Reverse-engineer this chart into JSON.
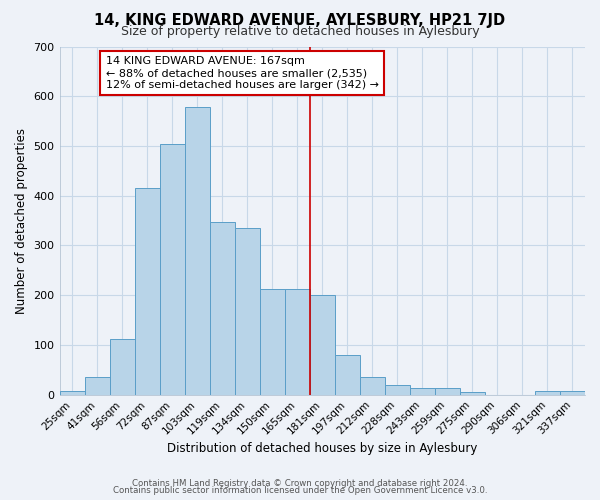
{
  "title": "14, KING EDWARD AVENUE, AYLESBURY, HP21 7JD",
  "subtitle": "Size of property relative to detached houses in Aylesbury",
  "xlabel": "Distribution of detached houses by size in Aylesbury",
  "ylabel": "Number of detached properties",
  "bar_labels": [
    "25sqm",
    "41sqm",
    "56sqm",
    "72sqm",
    "87sqm",
    "103sqm",
    "119sqm",
    "134sqm",
    "150sqm",
    "165sqm",
    "181sqm",
    "197sqm",
    "212sqm",
    "228sqm",
    "243sqm",
    "259sqm",
    "275sqm",
    "290sqm",
    "306sqm",
    "321sqm",
    "337sqm"
  ],
  "bar_values": [
    8,
    35,
    112,
    415,
    505,
    578,
    347,
    335,
    213,
    213,
    200,
    80,
    35,
    20,
    13,
    13,
    5,
    0,
    0,
    8,
    8
  ],
  "bar_color": "#b8d4e8",
  "bar_edge_color": "#5a9ec8",
  "property_line_x": 10.0,
  "annotation_title": "14 KING EDWARD AVENUE: 167sqm",
  "annotation_line1": "← 88% of detached houses are smaller (2,535)",
  "annotation_line2": "12% of semi-detached houses are larger (342) →",
  "annotation_box_color": "#ffffff",
  "annotation_border_color": "#cc0000",
  "vline_color": "#cc0000",
  "ylim": [
    0,
    700
  ],
  "yticks": [
    0,
    100,
    200,
    300,
    400,
    500,
    600,
    700
  ],
  "grid_color": "#c8d8e8",
  "bg_color": "#eef2f8",
  "footer_line1": "Contains HM Land Registry data © Crown copyright and database right 2024.",
  "footer_line2": "Contains public sector information licensed under the Open Government Licence v3.0."
}
